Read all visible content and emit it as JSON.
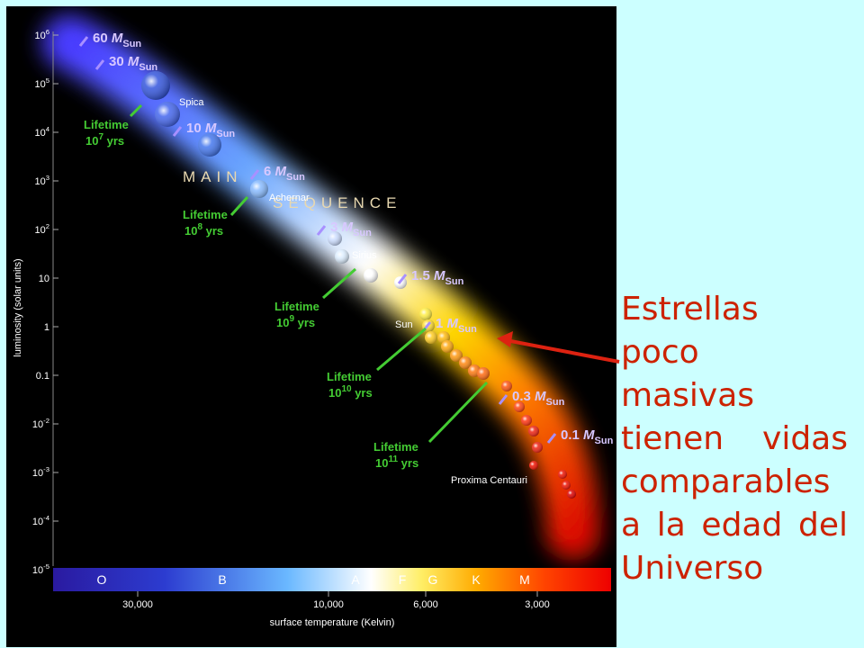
{
  "diagram": {
    "y_axis_label": "luminosity (solar units)",
    "x_axis_label": "surface temperature (Kelvin)",
    "y_ticks": [
      {
        "base": "10",
        "exp": "6"
      },
      {
        "base": "10",
        "exp": "5"
      },
      {
        "base": "10",
        "exp": "4"
      },
      {
        "base": "10",
        "exp": "3"
      },
      {
        "base": "10",
        "exp": "2"
      },
      {
        "base": "10",
        "exp": ""
      },
      {
        "base": "1",
        "exp": ""
      },
      {
        "base": "0.1",
        "exp": ""
      },
      {
        "base": "10",
        "exp": "-2"
      },
      {
        "base": "10",
        "exp": "-3"
      },
      {
        "base": "10",
        "exp": "-4"
      },
      {
        "base": "10",
        "exp": "-5"
      }
    ],
    "x_ticks": [
      "30,000",
      "10,000",
      "6,000",
      "3,000"
    ],
    "spectral_classes": [
      "O",
      "B",
      "A",
      "F",
      "G",
      "K",
      "M"
    ],
    "sequence_words": [
      "MAIN",
      "SEQUENCE"
    ],
    "masses": [
      {
        "value": "60",
        "unit": "M",
        "sub": "Sun"
      },
      {
        "value": "30",
        "unit": "M",
        "sub": "Sun"
      },
      {
        "value": "10",
        "unit": "M",
        "sub": "Sun"
      },
      {
        "value": "6",
        "unit": "M",
        "sub": "Sun"
      },
      {
        "value": "3",
        "unit": "M",
        "sub": "Sun"
      },
      {
        "value": "1.5",
        "unit": "M",
        "sub": "Sun"
      },
      {
        "value": "1",
        "unit": "M",
        "sub": "Sun"
      },
      {
        "value": "0.3",
        "unit": "M",
        "sub": "Sun"
      },
      {
        "value": "0.1",
        "unit": "M",
        "sub": "Sun"
      }
    ],
    "stars": [
      "Spica",
      "Achernar",
      "Sirius",
      "Sun",
      "Proxima Centauri"
    ],
    "lifetimes": [
      {
        "label": "Lifetime",
        "base": "10",
        "exp": "7",
        "unit": "yrs"
      },
      {
        "label": "Lifetime",
        "base": "10",
        "exp": "8",
        "unit": "yrs"
      },
      {
        "label": "Lifetime",
        "base": "10",
        "exp": "9",
        "unit": "yrs"
      },
      {
        "label": "Lifetime",
        "base": "10",
        "exp": "10",
        "unit": "yrs"
      },
      {
        "label": "Lifetime",
        "base": "10",
        "exp": "11",
        "unit": "yrs"
      }
    ]
  },
  "caption": {
    "lines": [
      "Estrellas",
      "poco",
      "masivas",
      "tienen vidas",
      "comparables",
      "a la edad del",
      "Universo"
    ],
    "color": "#cc2200"
  },
  "colors": {
    "background": "#ccffff",
    "lifetime_green": "#44cc33",
    "mass_label": "#d8c8ff",
    "arrow": "#dd2211"
  }
}
